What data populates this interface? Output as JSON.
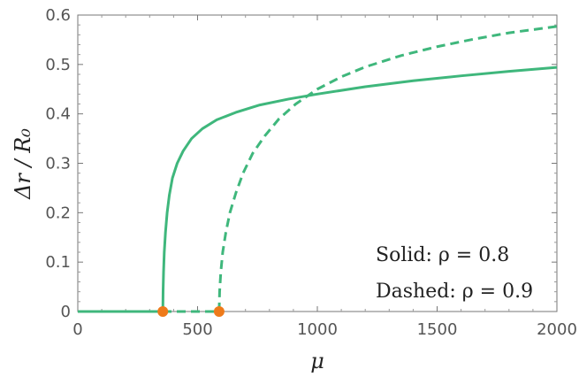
{
  "chart_data": {
    "type": "line",
    "title": "",
    "xlabel": "μ",
    "ylabel": "Δr / R₀",
    "xlim": [
      0,
      2000
    ],
    "ylim": [
      0,
      0.6
    ],
    "xticks": [
      0,
      500,
      1000,
      1500,
      2000
    ],
    "yticks": [
      0,
      0.1,
      0.2,
      0.3,
      0.4,
      0.5,
      0.6
    ],
    "xtick_labels": [
      "0",
      "500",
      "1000",
      "1500",
      "2000"
    ],
    "ytick_labels": [
      "0",
      "0.1",
      "0.2",
      "0.3",
      "0.4",
      "0.5",
      "0.6"
    ],
    "grid": false,
    "line_color": "#3fb77c",
    "marker_color": "#ee7a1a",
    "annotations": [
      "Solid:  ρ = 0.8",
      "Dashed:  ρ = 0.9"
    ],
    "series": [
      {
        "style": "solid",
        "x": [
          0,
          355,
          356,
          358,
          361,
          366,
          373,
          382,
          395,
          415,
          440,
          475,
          520,
          580,
          660,
          760,
          880,
          1000,
          1200,
          1400,
          1600,
          1800,
          2000
        ],
        "y": [
          0,
          0,
          0.04,
          0.08,
          0.12,
          0.16,
          0.2,
          0.235,
          0.27,
          0.3,
          0.325,
          0.35,
          0.37,
          0.388,
          0.403,
          0.418,
          0.43,
          0.44,
          0.455,
          0.467,
          0.477,
          0.486,
          0.494
        ]
      },
      {
        "style": "dashed",
        "x": [
          0,
          590,
          592,
          597,
          605,
          618,
          635,
          660,
          690,
          730,
          780,
          840,
          910,
          1000,
          1100,
          1200,
          1350,
          1500,
          1650,
          1800,
          2000
        ],
        "y": [
          0,
          0,
          0.04,
          0.08,
          0.12,
          0.16,
          0.2,
          0.24,
          0.28,
          0.32,
          0.355,
          0.39,
          0.42,
          0.45,
          0.475,
          0.495,
          0.518,
          0.536,
          0.551,
          0.564,
          0.577
        ]
      }
    ],
    "markers": [
      {
        "x": 355,
        "y": 0
      },
      {
        "x": 590,
        "y": 0
      }
    ]
  }
}
